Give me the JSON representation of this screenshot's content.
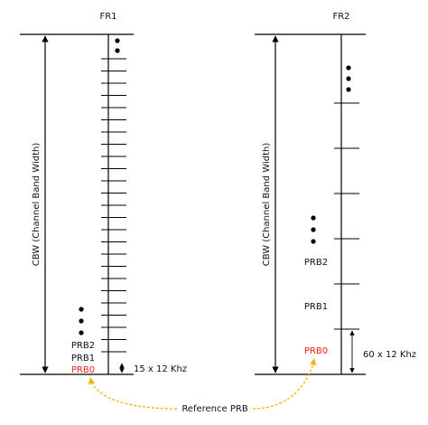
{
  "panels": [
    {
      "title": "FR1",
      "cbw_label": "CBW (Channel Band Width)",
      "prbs": [
        "PRB2",
        "PRB1",
        "PRB0"
      ],
      "spacing_label": "15 x 12 Khz"
    },
    {
      "title": "FR2",
      "cbw_label": "CBW (Channel Band Width)",
      "prbs": [
        "PRB2",
        "PRB1",
        "PRB0"
      ],
      "spacing_label": "60 x 12 Khz"
    }
  ],
  "reference_label": "Reference PRB"
}
